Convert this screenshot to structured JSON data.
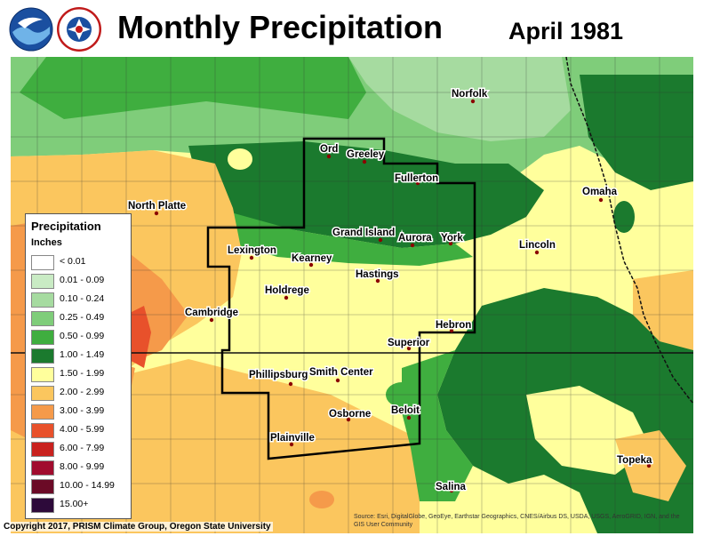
{
  "header": {
    "title": "Monthly Precipitation",
    "date": "April 1981"
  },
  "legend": {
    "title": "Precipitation",
    "unit": "Inches",
    "items": [
      {
        "label": "< 0.01",
        "color": "#ffffff"
      },
      {
        "label": "0.01 - 0.09",
        "color": "#c9ebc4"
      },
      {
        "label": "0.10 - 0.24",
        "color": "#a6dba0"
      },
      {
        "label": "0.25 - 0.49",
        "color": "#7fcd7a"
      },
      {
        "label": "0.50 - 0.99",
        "color": "#3fae3f"
      },
      {
        "label": "1.00 - 1.49",
        "color": "#1b7a2e"
      },
      {
        "label": "1.50 - 1.99",
        "color": "#ffff9c"
      },
      {
        "label": "2.00 - 2.99",
        "color": "#fbc65e"
      },
      {
        "label": "3.00 - 3.99",
        "color": "#f59a4a"
      },
      {
        "label": "4.00 - 5.99",
        "color": "#e8512b"
      },
      {
        "label": "6.00 - 7.99",
        "color": "#c9221f"
      },
      {
        "label": "8.00 - 9.99",
        "color": "#a10c2e"
      },
      {
        "label": "10.00 - 14.99",
        "color": "#6b0a26"
      },
      {
        "label": "15.00+",
        "color": "#2d0a3a"
      }
    ]
  },
  "cities": [
    {
      "name": "Norfolk"
    },
    {
      "name": "Ord"
    },
    {
      "name": "Greeley"
    },
    {
      "name": "Fullerton"
    },
    {
      "name": "North Platte"
    },
    {
      "name": "Omaha"
    },
    {
      "name": "Grand Island"
    },
    {
      "name": "Aurora"
    },
    {
      "name": "York"
    },
    {
      "name": "Lexington"
    },
    {
      "name": "Kearney"
    },
    {
      "name": "Lincoln"
    },
    {
      "name": "Hastings"
    },
    {
      "name": "Holdrege"
    },
    {
      "name": "Cambridge"
    },
    {
      "name": "Hebron"
    },
    {
      "name": "Superior"
    },
    {
      "name": "Phillipsburg"
    },
    {
      "name": "Smith Center"
    },
    {
      "name": "Beloit"
    },
    {
      "name": "Osborne"
    },
    {
      "name": "Plainville"
    },
    {
      "name": "Topeka"
    },
    {
      "name": "Salina"
    }
  ],
  "footer": {
    "copyright": "Copyright 2017, PRISM Climate Group, Oregon State University",
    "credits": "Source: Esri, DigitalGlobe, GeoEye, Earthstar Geographics, CNES/Airbus DS, USDA, USGS, AeroGRID, IGN, and the GIS User Community"
  }
}
